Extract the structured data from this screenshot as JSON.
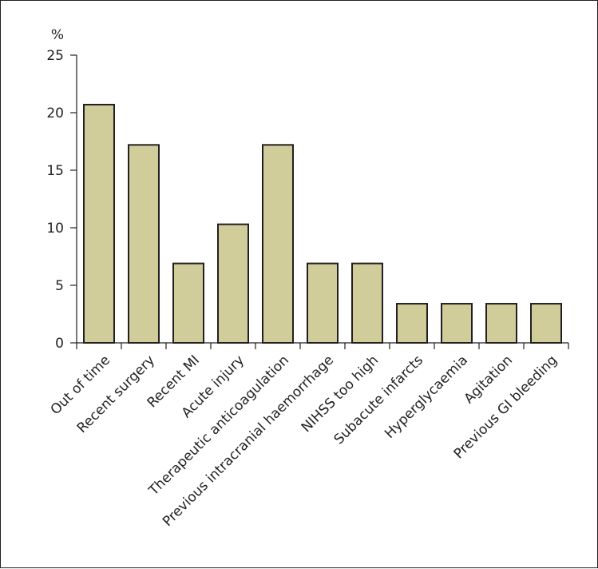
{
  "chart_data": {
    "type": "bar",
    "ylabel": "%",
    "ylim": [
      0,
      25
    ],
    "yticks": [
      0,
      5,
      10,
      15,
      20,
      25
    ],
    "grid": false,
    "categories": [
      "Out of time",
      "Recent surgery",
      "Recent MI",
      "Acute injury",
      "Therapeutic anticoagulation",
      "Previous intracranial haemorrhage",
      "NIHSS too high",
      "Subacute infarcts",
      "Hyperglycaemia",
      "Agitation",
      "Previous GI bleeding"
    ],
    "values": [
      20.7,
      17.2,
      6.9,
      10.3,
      17.2,
      6.9,
      6.9,
      3.4,
      3.4,
      3.4,
      3.4
    ],
    "colors": {
      "bar_fill": "#d1cd9a",
      "bar_stroke": "#231f20",
      "axis": "#231f20"
    }
  }
}
